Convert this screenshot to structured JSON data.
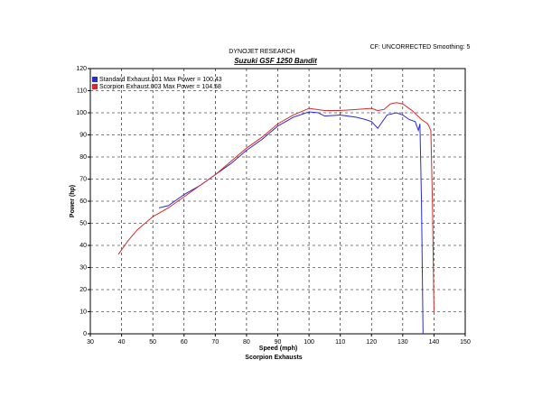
{
  "chart_data": {
    "type": "line",
    "header": "DYNOJET RESEARCH",
    "annotation": "CF: UNCORRECTED  Smoothing: 5",
    "title": "Suzuki GSF 1250 Bandit",
    "x_label": "Speed (mph)",
    "y_label": "Power (hp)",
    "caption": "Scorpion Exhausts",
    "xlim": [
      30,
      150
    ],
    "ylim": [
      0,
      120
    ],
    "xticks": [
      30,
      40,
      50,
      60,
      70,
      80,
      90,
      100,
      110,
      120,
      130,
      140,
      150
    ],
    "yticks": [
      0,
      10,
      20,
      30,
      40,
      50,
      60,
      70,
      80,
      90,
      100,
      110,
      120
    ],
    "grid": true,
    "legend": "upper-left",
    "series": [
      {
        "name": "Standard Exhaust.001 Max Power = 100.43",
        "color": "#2b2bd6",
        "x": [
          52,
          55,
          60,
          65,
          70,
          75,
          80,
          85,
          90,
          95,
          100,
          103,
          105,
          110,
          115,
          118,
          120,
          122,
          123,
          125,
          128,
          130,
          132,
          134,
          135,
          135.5,
          136,
          136.5
        ],
        "values": [
          57,
          58,
          63,
          67,
          72,
          77,
          83,
          88,
          94,
          98,
          100.4,
          100,
          98.5,
          99,
          98,
          97,
          96,
          93,
          95,
          99,
          100,
          99,
          97,
          96,
          92,
          95,
          60,
          0
        ]
      },
      {
        "name": "Scorpion Exhaust.003 Max Power = 104.58",
        "color": "#d62b2b",
        "x": [
          39,
          42,
          45,
          50,
          55,
          60,
          65,
          70,
          75,
          80,
          85,
          90,
          95,
          100,
          105,
          110,
          115,
          120,
          122,
          124,
          126,
          128,
          130,
          133,
          136,
          138,
          139,
          139.5,
          140
        ],
        "values": [
          36,
          42,
          47,
          53,
          57,
          62,
          67,
          72,
          78,
          84,
          89,
          95,
          99,
          102,
          101,
          101,
          101.5,
          102,
          101,
          101.5,
          104,
          104.6,
          104,
          101,
          97,
          95,
          92,
          60,
          10
        ]
      }
    ]
  }
}
